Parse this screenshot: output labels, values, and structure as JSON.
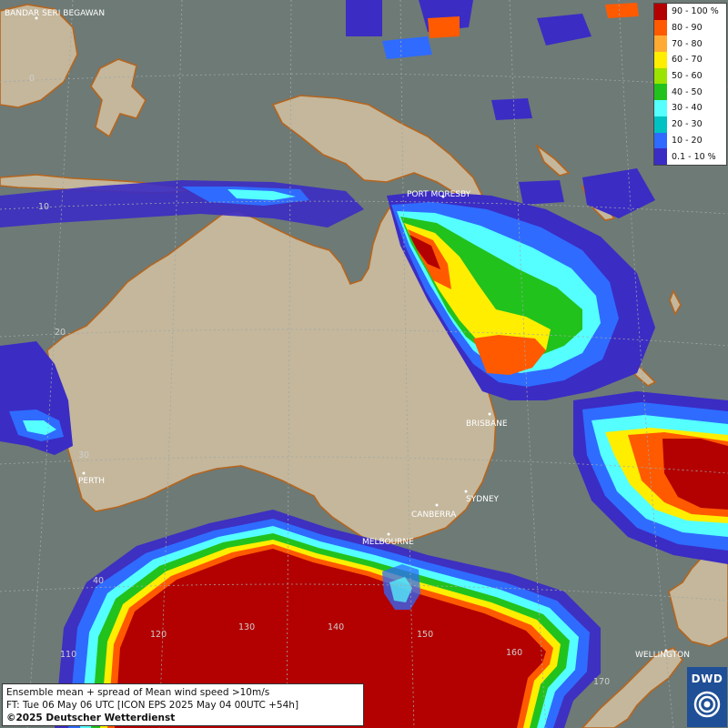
{
  "legend": {
    "items": [
      {
        "label": "90 - 100 %",
        "color": "#b30000"
      },
      {
        "label": "80 - 90",
        "color": "#ff5a00"
      },
      {
        "label": "70 - 80",
        "color": "#ffaa33"
      },
      {
        "label": "60 - 70",
        "color": "#ffee00"
      },
      {
        "label": "50 - 60",
        "color": "#9be300"
      },
      {
        "label": "40 - 50",
        "color": "#22c21d"
      },
      {
        "label": "30 - 40",
        "color": "#55ffff"
      },
      {
        "label": "20 - 30",
        "color": "#00c2c2"
      },
      {
        "label": "10 - 20",
        "color": "#2f6bff"
      },
      {
        "label": "0.1 - 10 %",
        "color": "#3b2cc4"
      }
    ]
  },
  "cities": {
    "bandar": "BANDAR SERI BEGAWAN",
    "port_moresby": "PORT MORESBY",
    "brisbane": "BRISBANE",
    "sydney": "SYDNEY",
    "canberra": "CANBERRA",
    "melbourne": "MELBOURNE",
    "perth": "PERTH",
    "wellington": "WELLINGTON"
  },
  "grid_labels": {
    "lat_0": "0",
    "lat_10": "10",
    "lat_20": "20",
    "lat_30": "30",
    "lat_40": "40",
    "lat_110": "110",
    "lon_120": "120",
    "lon_130": "130",
    "lon_140": "140",
    "lon_150": "150",
    "lon_160": "160",
    "lon_170": "170"
  },
  "info": {
    "line1": "Ensemble mean + spread of Mean wind speed >10m/s",
    "line2": "FT: Tue 06 May 06 UTC [ICON EPS 2025 May 04 00UTC +54h]",
    "line3": "©2025 Deutscher Wetterdienst"
  },
  "logo": {
    "text": "DWD"
  },
  "colors": {
    "ocean": "#6e7a76",
    "land": "#c9bfa8",
    "coast": "#b5651d",
    "dwd_blue": "#1f4f96"
  }
}
